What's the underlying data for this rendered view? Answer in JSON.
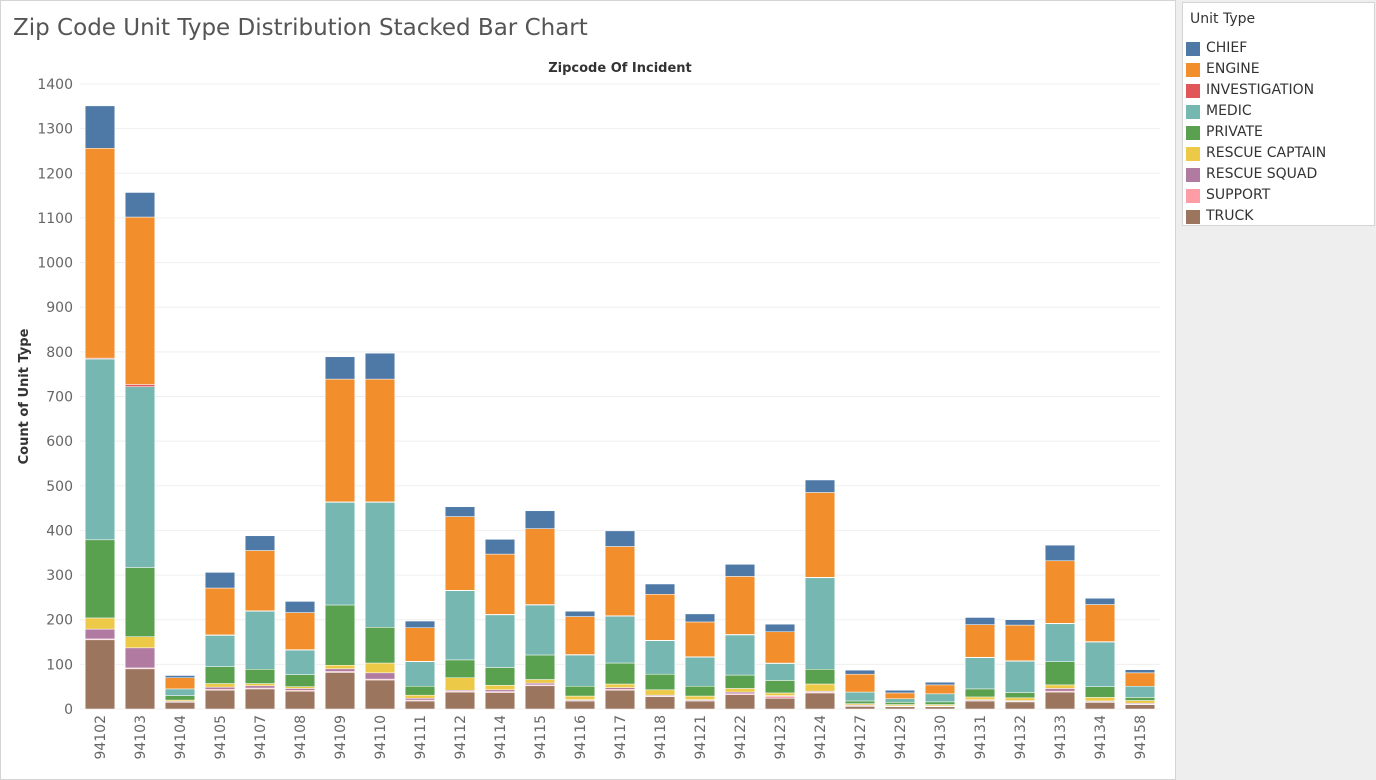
{
  "page": {
    "title": "Zip Code Unit Type Distribution Stacked Bar Chart"
  },
  "legend": {
    "title": "Unit Type",
    "items": [
      {
        "label": "CHIEF",
        "color": "#4e79a7"
      },
      {
        "label": "ENGINE",
        "color": "#f28e2b"
      },
      {
        "label": "INVESTIGATION",
        "color": "#e15759"
      },
      {
        "label": "MEDIC",
        "color": "#76b7b2"
      },
      {
        "label": "PRIVATE",
        "color": "#59a14f"
      },
      {
        "label": "RESCUE CAPTAIN",
        "color": "#edc948"
      },
      {
        "label": "RESCUE SQUAD",
        "color": "#b07aa1"
      },
      {
        "label": "SUPPORT",
        "color": "#ff9da7"
      },
      {
        "label": "TRUCK",
        "color": "#9c755f"
      }
    ]
  },
  "chart_data": {
    "type": "bar",
    "stacked": true,
    "title": "Zipcode Of Incident",
    "xlabel": "",
    "ylabel": "Count of Unit Type",
    "ylim": [
      0,
      1400
    ],
    "yticks": [
      0,
      100,
      200,
      300,
      400,
      500,
      600,
      700,
      800,
      900,
      1000,
      1100,
      1200,
      1300,
      1400
    ],
    "grid": true,
    "legend_position": "right",
    "categories": [
      "94102",
      "94103",
      "94104",
      "94105",
      "94107",
      "94108",
      "94109",
      "94110",
      "94111",
      "94112",
      "94114",
      "94115",
      "94116",
      "94117",
      "94118",
      "94121",
      "94122",
      "94123",
      "94124",
      "94127",
      "94129",
      "94130",
      "94131",
      "94132",
      "94133",
      "94134",
      "94158"
    ],
    "series": [
      {
        "name": "TRUCK",
        "color": "#9c755f",
        "values": [
          155,
          90,
          15,
          42,
          45,
          40,
          82,
          65,
          18,
          38,
          37,
          52,
          18,
          42,
          28,
          18,
          32,
          24,
          36,
          6,
          5,
          5,
          18,
          16,
          38,
          15,
          10
        ]
      },
      {
        "name": "SUPPORT",
        "color": "#ff9da7",
        "values": [
          2,
          2,
          0,
          2,
          2,
          2,
          2,
          2,
          2,
          2,
          2,
          2,
          1,
          2,
          1,
          1,
          2,
          4,
          2,
          1,
          1,
          1,
          1,
          1,
          2,
          1,
          1
        ]
      },
      {
        "name": "RESCUE SQUAD",
        "color": "#b07aa1",
        "values": [
          22,
          45,
          2,
          5,
          5,
          4,
          6,
          14,
          4,
          2,
          4,
          4,
          2,
          4,
          2,
          2,
          4,
          2,
          2,
          2,
          1,
          1,
          2,
          2,
          6,
          2,
          2
        ]
      },
      {
        "name": "RESCUE CAPTAIN",
        "color": "#edc948",
        "values": [
          25,
          25,
          3,
          8,
          5,
          4,
          8,
          22,
          7,
          28,
          10,
          8,
          8,
          8,
          12,
          8,
          8,
          6,
          16,
          3,
          3,
          3,
          6,
          6,
          8,
          8,
          6
        ]
      },
      {
        "name": "PRIVATE",
        "color": "#59a14f",
        "values": [
          175,
          155,
          10,
          38,
          32,
          27,
          135,
          80,
          20,
          40,
          40,
          55,
          22,
          47,
          35,
          22,
          30,
          28,
          33,
          6,
          5,
          6,
          18,
          12,
          52,
          24,
          7
        ]
      },
      {
        "name": "MEDIC",
        "color": "#76b7b2",
        "values": [
          405,
          405,
          15,
          70,
          130,
          55,
          230,
          280,
          55,
          155,
          118,
          112,
          70,
          105,
          75,
          65,
          90,
          38,
          205,
          20,
          8,
          18,
          70,
          70,
          85,
          100,
          25
        ]
      },
      {
        "name": "INVESTIGATION",
        "color": "#e15759",
        "values": [
          2,
          5,
          0,
          1,
          1,
          1,
          1,
          1,
          1,
          1,
          1,
          1,
          1,
          1,
          1,
          1,
          1,
          1,
          1,
          0,
          0,
          0,
          1,
          1,
          1,
          1,
          0
        ]
      },
      {
        "name": "ENGINE",
        "color": "#f28e2b",
        "values": [
          470,
          375,
          25,
          105,
          135,
          83,
          275,
          275,
          75,
          165,
          135,
          170,
          85,
          155,
          103,
          78,
          130,
          70,
          190,
          40,
          13,
          20,
          73,
          80,
          140,
          83,
          30
        ]
      },
      {
        "name": "CHIEF",
        "color": "#4e79a7",
        "values": [
          95,
          55,
          5,
          35,
          33,
          25,
          50,
          58,
          15,
          22,
          33,
          40,
          12,
          35,
          23,
          18,
          27,
          17,
          28,
          9,
          6,
          6,
          16,
          12,
          35,
          14,
          7
        ]
      }
    ]
  }
}
